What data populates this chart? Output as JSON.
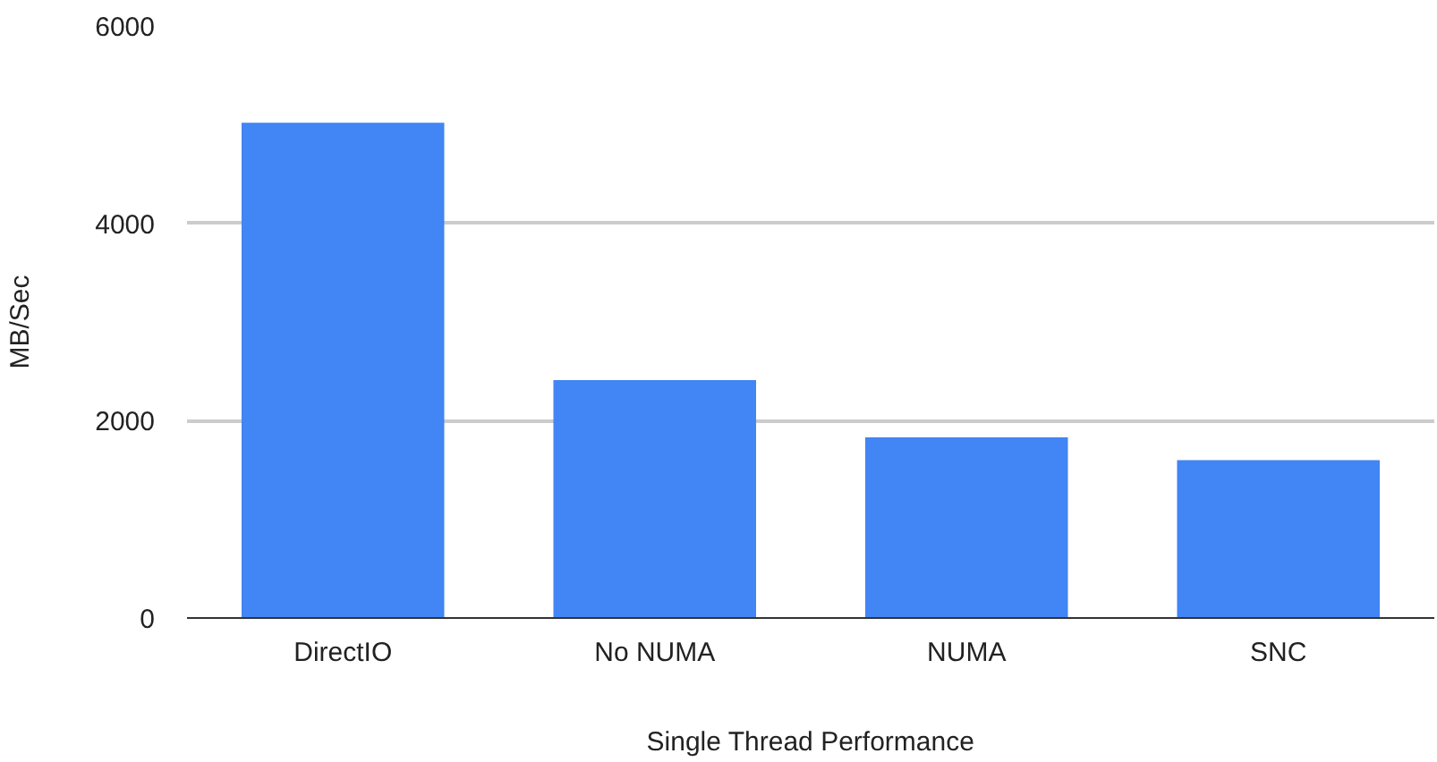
{
  "chart_data": {
    "type": "bar",
    "xlabel": "Single Thread Performance",
    "ylabel": "MB/Sec",
    "categories": [
      "DirectIO",
      "No NUMA",
      "NUMA",
      "SNC"
    ],
    "values": [
      5020,
      2410,
      1830,
      1600
    ],
    "color": "#4285f4",
    "ylim": [
      0,
      6000
    ],
    "yticks": [
      0,
      2000,
      4000,
      6000
    ],
    "grid": "y"
  }
}
